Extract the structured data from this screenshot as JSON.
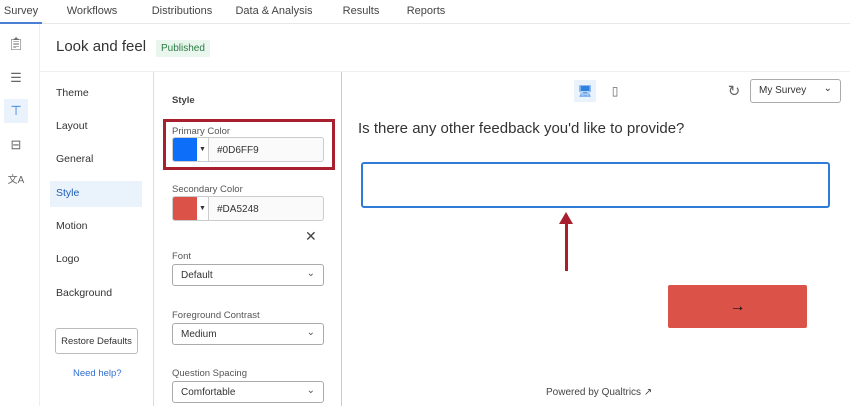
{
  "nav": {
    "tabs": [
      "Survey",
      "Workflows",
      "Distributions",
      "Data & Analysis",
      "Results",
      "Reports"
    ],
    "active": "Survey"
  },
  "rail": {
    "icons": [
      "clipboard-icon",
      "layout-icon",
      "paint-roller-icon",
      "options-icon",
      "translate-icon"
    ],
    "active": "paint-roller-icon"
  },
  "header": {
    "title": "Look and feel",
    "status": "Published"
  },
  "sidebar": {
    "items": [
      "Theme",
      "Layout",
      "General",
      "Style",
      "Motion",
      "Logo",
      "Background"
    ],
    "active": "Style",
    "restore": "Restore Defaults",
    "help": "Need help?"
  },
  "style": {
    "heading": "Style",
    "primary_label": "Primary Color",
    "primary_value": "#0D6FF9",
    "primary_color": "#0D6FF9",
    "secondary_label": "Secondary Color",
    "secondary_value": "#DA5248",
    "secondary_color": "#DA5248",
    "font_label": "Font",
    "font_value": "Default",
    "contrast_label": "Foreground Contrast",
    "contrast_value": "Medium",
    "spacing_label": "Question Spacing",
    "spacing_value": "Comfortable"
  },
  "preview": {
    "survey_select": "My Survey",
    "question": "Is there any other feedback you'd like to provide?",
    "next_label": "→",
    "powered": "Powered by Qualtrics"
  },
  "colors": {
    "accent": "#2F7BD8",
    "highlight": "#A8202E",
    "published": "#2C7A45"
  }
}
